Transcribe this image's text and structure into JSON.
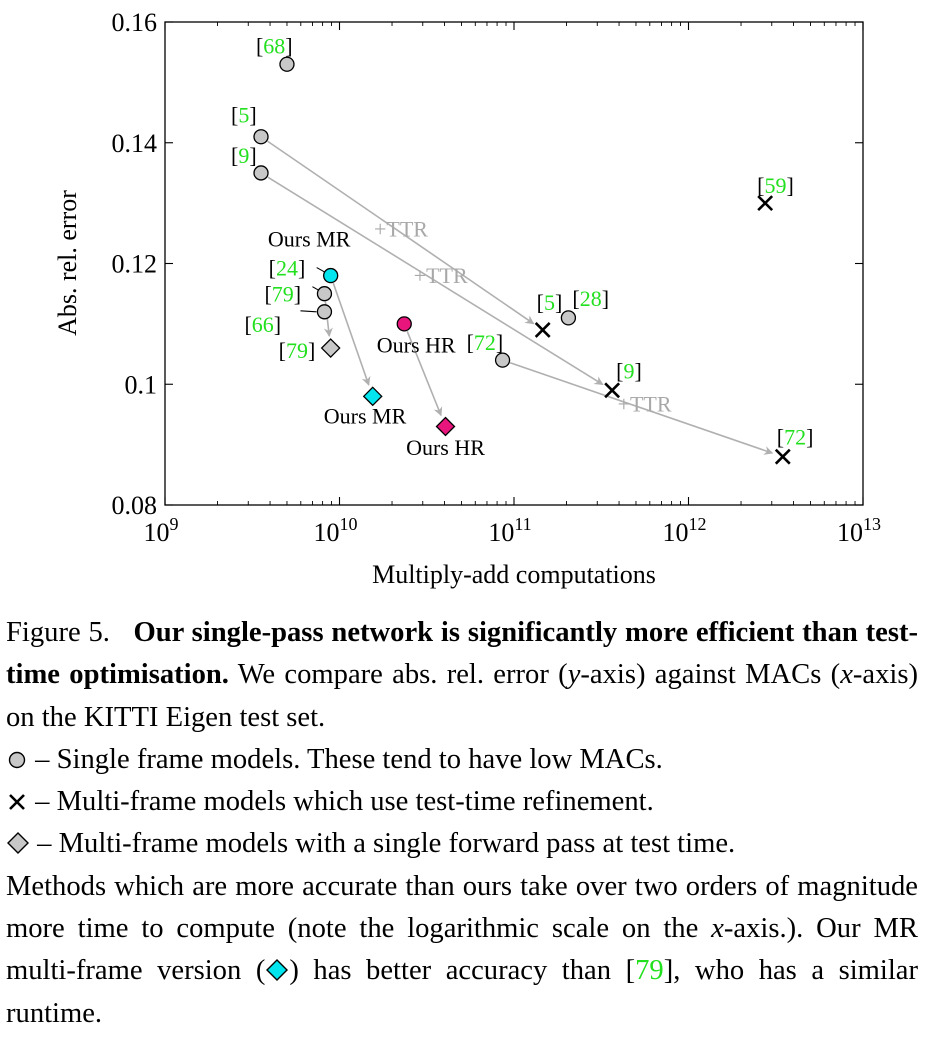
{
  "chart_data": {
    "type": "scatter",
    "xlabel": "Multiply-add computations",
    "ylabel": "Abs. rel. error",
    "xscale": "log",
    "xlim": [
      1000000000,
      10000000000000
    ],
    "ylim": [
      0.08,
      0.16
    ],
    "xticks": [
      {
        "value": 1000000000,
        "base": "10",
        "exp": "9"
      },
      {
        "value": 10000000000,
        "base": "10",
        "exp": "10"
      },
      {
        "value": 100000000000,
        "base": "10",
        "exp": "11"
      },
      {
        "value": 1000000000000,
        "base": "10",
        "exp": "12"
      },
      {
        "value": 10000000000000,
        "base": "10",
        "exp": "13"
      }
    ],
    "yticks": [
      {
        "value": 0.08,
        "label": "0.08"
      },
      {
        "value": 0.1,
        "label": "0.1"
      },
      {
        "value": 0.12,
        "label": "0.12"
      },
      {
        "value": 0.14,
        "label": "0.14"
      },
      {
        "value": 0.16,
        "label": "0.16"
      }
    ],
    "grid": false,
    "points": [
      {
        "id": "p68",
        "marker": "circle",
        "color": "#c8c8c8",
        "x": 5000000000,
        "y": 0.153,
        "label": "68",
        "lp": [
          -31,
          -11
        ]
      },
      {
        "id": "p5",
        "marker": "circle",
        "color": "#c8c8c8",
        "x": 3550000000,
        "y": 0.141,
        "label": "5",
        "lp": [
          -30,
          -14
        ]
      },
      {
        "id": "p9",
        "marker": "circle",
        "color": "#c8c8c8",
        "x": 3550000000,
        "y": 0.135,
        "label": "9",
        "lp": [
          -30,
          -10
        ]
      },
      {
        "id": "p79c",
        "marker": "circle",
        "color": "#c8c8c8",
        "x": 8200000000,
        "y": 0.115,
        "label": "79",
        "lp": [
          -60,
          8
        ]
      },
      {
        "id": "p66",
        "marker": "circle",
        "color": "#c8c8c8",
        "x": 8200000000,
        "y": 0.112,
        "label": "66",
        "lp": [
          -80,
          20
        ]
      },
      {
        "id": "p72c",
        "marker": "circle",
        "color": "#c8c8c8",
        "x": 86000000000,
        "y": 0.104,
        "label": "72",
        "lp": [
          -36,
          -10
        ]
      },
      {
        "id": "p28",
        "marker": "circle",
        "color": "#c8c8c8",
        "x": 205000000000,
        "y": 0.111,
        "label": "28",
        "lp": [
          4,
          -12
        ]
      },
      {
        "id": "p24",
        "marker": "circle",
        "color": "#00e5ee",
        "x": 8900000000,
        "y": 0.118,
        "label": "24",
        "lp": [
          -62,
          0
        ]
      },
      {
        "id": "phr",
        "marker": "circle",
        "color": "#e8157d",
        "x": 23500000000,
        "y": 0.11,
        "label": "",
        "lp": [
          0,
          0
        ]
      },
      {
        "id": "p79d",
        "marker": "diamond",
        "color": "#c8c8c8",
        "x": 8900000000,
        "y": 0.106,
        "label": "79",
        "lp": [
          -52,
          10
        ]
      },
      {
        "id": "pmrd",
        "marker": "diamond",
        "color": "#00e5ee",
        "x": 15500000000,
        "y": 0.098,
        "label": "",
        "lp": [
          0,
          0
        ]
      },
      {
        "id": "phrd",
        "marker": "diamond",
        "color": "#e8157d",
        "x": 40500000000,
        "y": 0.093,
        "label": "",
        "lp": [
          0,
          0
        ]
      },
      {
        "id": "x5",
        "marker": "cross",
        "color": "#000000",
        "x": 146000000000,
        "y": 0.109,
        "label": "5",
        "lp": [
          -6,
          -20
        ]
      },
      {
        "id": "x9",
        "marker": "cross",
        "color": "#000000",
        "x": 365000000000,
        "y": 0.099,
        "label": "9",
        "lp": [
          4,
          -12
        ]
      },
      {
        "id": "x59",
        "marker": "cross",
        "color": "#000000",
        "x": 2750000000000,
        "y": 0.13,
        "label": "59",
        "lp": [
          -8,
          -10
        ]
      },
      {
        "id": "x72",
        "marker": "cross",
        "color": "#000000",
        "x": 3470000000000,
        "y": 0.088,
        "label": "72",
        "lp": [
          -6,
          -12
        ]
      }
    ],
    "arrows": [
      {
        "from": "p5",
        "to": "x5"
      },
      {
        "from": "p9",
        "to": "x9"
      },
      {
        "from": "p72c",
        "to": "x72"
      },
      {
        "from": "p24",
        "to": "pmrd"
      },
      {
        "from": "phr",
        "to": "phrd"
      },
      {
        "from": "p79c",
        "to": "p79d"
      }
    ],
    "annotations": [
      {
        "text": "+TTR",
        "x": 22500000000,
        "y": 0.1245,
        "color": "#a8a8a8"
      },
      {
        "text": "+TTR",
        "x": 38000000000,
        "y": 0.1168,
        "color": "#a8a8a8"
      },
      {
        "text": "+TTR",
        "x": 560000000000,
        "y": 0.0955,
        "color": "#a8a8a8"
      },
      {
        "text": "Ours MR",
        "x": 6700000000,
        "y": 0.1228,
        "color": "#000000"
      },
      {
        "text": "Ours HR",
        "x": 27500000000,
        "y": 0.1053,
        "color": "#000000"
      },
      {
        "text": "Ours MR",
        "x": 14000000000,
        "y": 0.0935,
        "color": "#000000"
      },
      {
        "text": "Ours HR",
        "x": 40500000000,
        "y": 0.0883,
        "color": "#000000"
      }
    ]
  },
  "caption": {
    "figure_label": "Figure 5.",
    "title": "Our single-pass network is significantly more efficient than test-time optimisation.",
    "intro_a": "We compare abs. rel. error (",
    "intro_y": "y",
    "intro_b": "-axis) against MACs (",
    "intro_x": "x",
    "intro_c": "-axis) on the KITTI Eigen test set.",
    "legend_circle": " – Single frame models. These tend to have low MACs.",
    "legend_cross": " – Multi-frame models which use test-time refinement.",
    "legend_diamond": " – Multi-frame models with a single forward pass at test time.",
    "body_a": "Methods which are more accurate than ours take over two orders of magnitude more time to compute (note the logarithmic scale on the ",
    "body_x": "x",
    "body_b": "-axis.). Our MR multi-frame version (",
    "body_c": ") has better accuracy than [",
    "body_ref": "79",
    "body_d": "], who has a similar runtime."
  }
}
